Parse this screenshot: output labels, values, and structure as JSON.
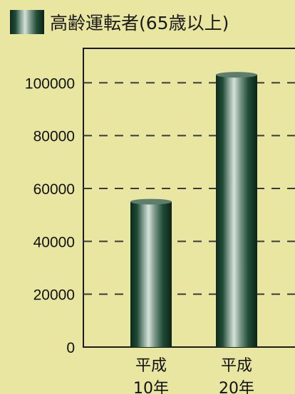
{
  "chart_data": {
    "type": "bar",
    "legend": {
      "label": "高齢運転者(65歳以上)",
      "placement": "top"
    },
    "categories": [
      {
        "line1": "平成",
        "line2": "10年"
      },
      {
        "line1": "平成",
        "line2": "20年"
      }
    ],
    "series": [
      {
        "name": "高齢運転者(65歳以上)",
        "values": [
          55000,
          103000
        ]
      }
    ],
    "yticks": [
      "0",
      "20000",
      "40000",
      "60000",
      "80000",
      "100000"
    ],
    "ylim": [
      0,
      113000
    ],
    "grid": "dashed horizontal"
  }
}
